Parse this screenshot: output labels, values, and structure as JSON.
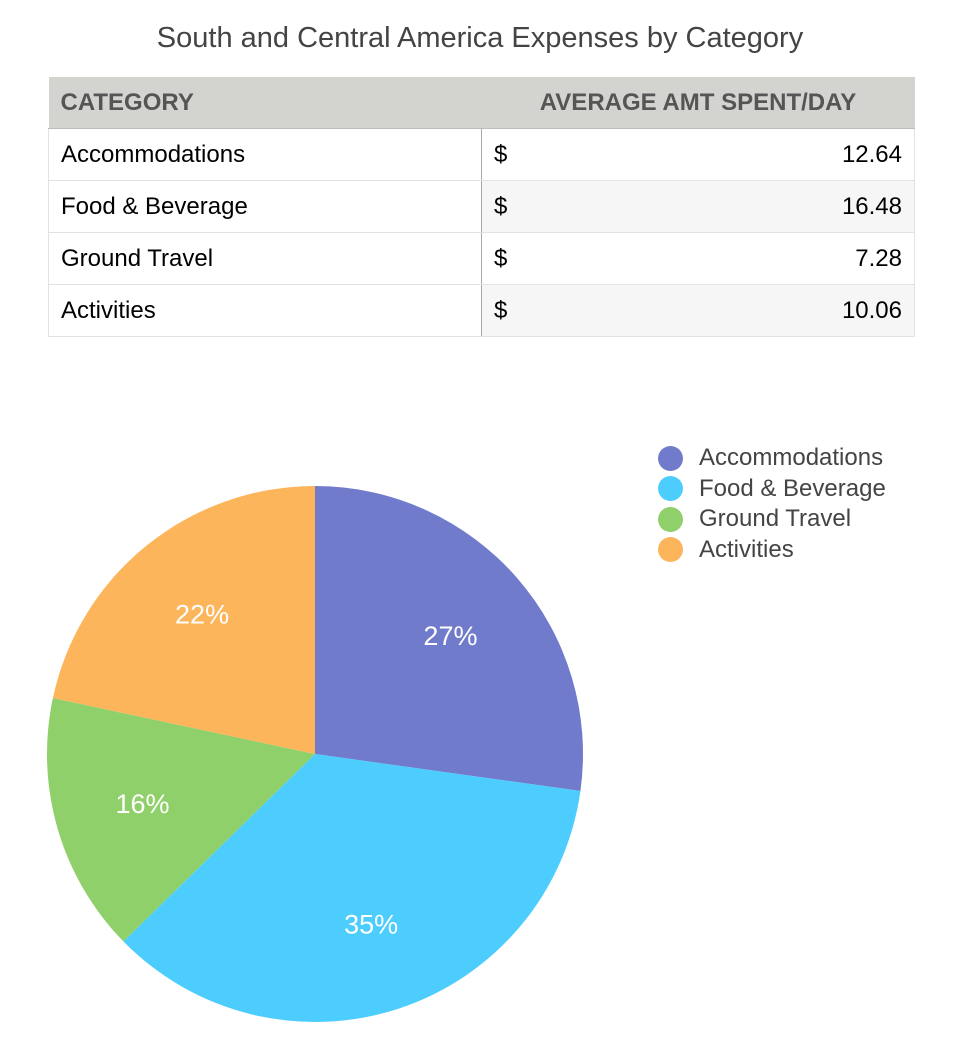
{
  "chart_data": {
    "type": "pie",
    "title": "South and Central America Expenses by Category",
    "table": {
      "headers": [
        "CATEGORY",
        "AVERAGE AMT SPENT/DAY"
      ],
      "currency": "$",
      "rows": [
        {
          "category": "Accommodations",
          "value": "12.64"
        },
        {
          "category": "Food & Beverage",
          "value": "16.48"
        },
        {
          "category": "Ground Travel",
          "value": "7.28"
        },
        {
          "category": "Activities",
          "value": "10.06"
        }
      ]
    },
    "categories": [
      "Accommodations",
      "Food & Beverage",
      "Ground Travel",
      "Activities"
    ],
    "values": [
      12.64,
      16.48,
      7.28,
      10.06
    ],
    "labels": [
      "27%",
      "35%",
      "16%",
      "22%"
    ],
    "colors": [
      "#717bcb",
      "#4dcdfd",
      "#8fd06a",
      "#fdb55c"
    ],
    "legend_position": "top-right"
  }
}
